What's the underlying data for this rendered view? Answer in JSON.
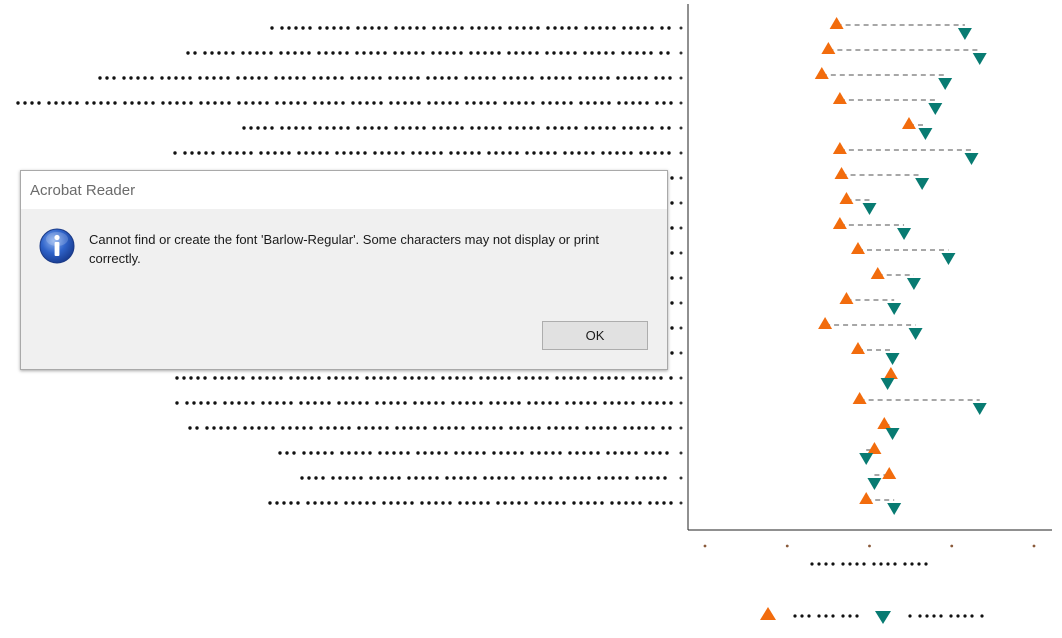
{
  "dialog": {
    "title": "Acrobat Reader",
    "message": "Cannot find or create the font 'Barlow-Regular'. Some characters may not display or print correctly.",
    "ok_label": "OK",
    "icon": "info-icon"
  },
  "chart_data": {
    "type": "dumbbell",
    "note": "Text rendered as dots because font is missing",
    "colors": {
      "start": "#f26c0d",
      "end": "#087b72",
      "connector": "#8a8a8a"
    },
    "series": [
      {
        "name": "",
        "marker": "triangle-up",
        "color": "#f26c0d",
        "values": [
          0.3,
          0.25,
          0.21,
          0.32,
          0.74,
          0.32,
          0.33,
          0.36,
          0.32,
          0.43,
          0.55,
          0.36,
          0.23,
          0.43,
          0.63,
          0.44,
          0.59,
          0.53,
          0.62,
          0.48
        ]
      },
      {
        "name": "",
        "marker": "triangle-down",
        "color": "#087b72",
        "values": [
          1.08,
          1.17,
          0.96,
          0.9,
          0.84,
          1.12,
          0.82,
          0.5,
          0.71,
          0.98,
          0.77,
          0.65,
          0.78,
          0.64,
          0.61,
          1.17,
          0.64,
          0.48,
          0.53,
          0.65
        ]
      }
    ],
    "xlim": [
      -0.5,
      1.5
    ],
    "xticks": [
      -0.5,
      0,
      0.5,
      1,
      1.5
    ],
    "rows": 20
  }
}
